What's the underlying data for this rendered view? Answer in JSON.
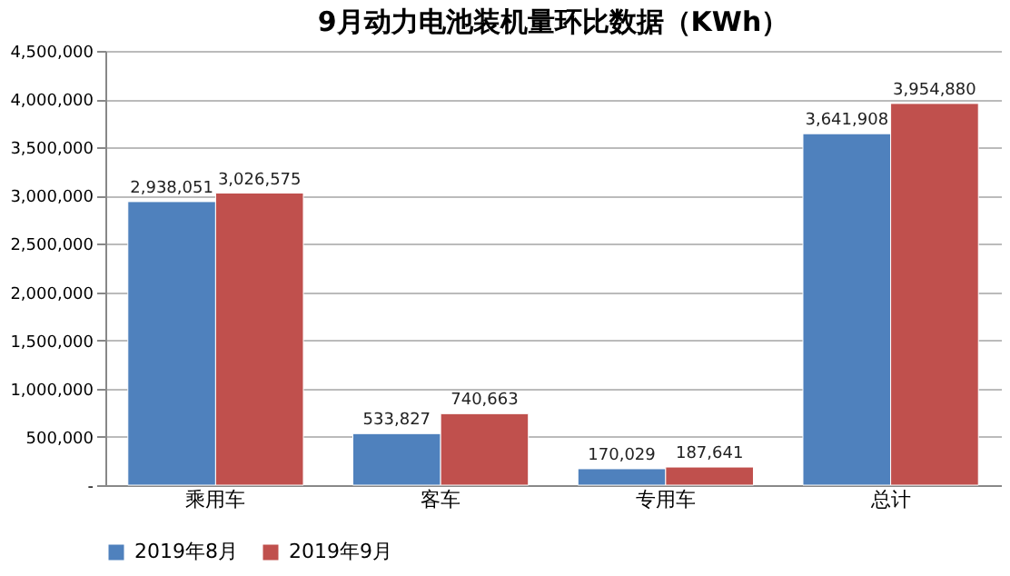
{
  "chart_data": {
    "type": "bar",
    "title": "9月动力电池装机量环比数据（KWh）",
    "categories": [
      "乘用车",
      "客车",
      "专用车",
      "总计"
    ],
    "series": [
      {
        "name": "2019年8月",
        "color": "#4f81bd",
        "values": [
          2938051,
          533827,
          170029,
          3641908
        ],
        "value_labels": [
          "2,938,051",
          "533,827",
          "170,029",
          "3,641,908"
        ]
      },
      {
        "name": "2019年9月",
        "color": "#c0504d",
        "values": [
          3026575,
          740663,
          187641,
          3954880
        ],
        "value_labels": [
          "3,026,575",
          "740,663",
          "187,641",
          "3,954,880"
        ]
      }
    ],
    "ylim": [
      0,
      4500000
    ],
    "yticks": [
      {
        "value": 0,
        "label": "-"
      },
      {
        "value": 500000,
        "label": "500,000"
      },
      {
        "value": 1000000,
        "label": "1,000,000"
      },
      {
        "value": 1500000,
        "label": "1,500,000"
      },
      {
        "value": 2000000,
        "label": "2,000,000"
      },
      {
        "value": 2500000,
        "label": "2,500,000"
      },
      {
        "value": 3000000,
        "label": "3,000,000"
      },
      {
        "value": 3500000,
        "label": "3,500,000"
      },
      {
        "value": 4000000,
        "label": "4,000,000"
      },
      {
        "value": 4500000,
        "label": "4,500,000"
      }
    ],
    "grid": "y",
    "legend": "bottom"
  }
}
